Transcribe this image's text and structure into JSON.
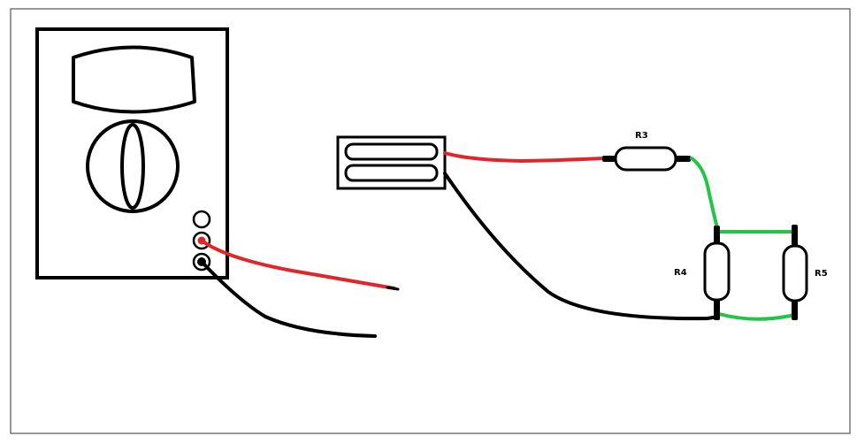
{
  "labels": {
    "r3": "R3",
    "r4": "R4",
    "r5": "R5"
  },
  "colors": {
    "background": "#ffffff",
    "frame": "#555555",
    "outline": "#000000",
    "red_wire": "#e0262b",
    "black_wire": "#000000",
    "green_wire": "#22c545"
  }
}
